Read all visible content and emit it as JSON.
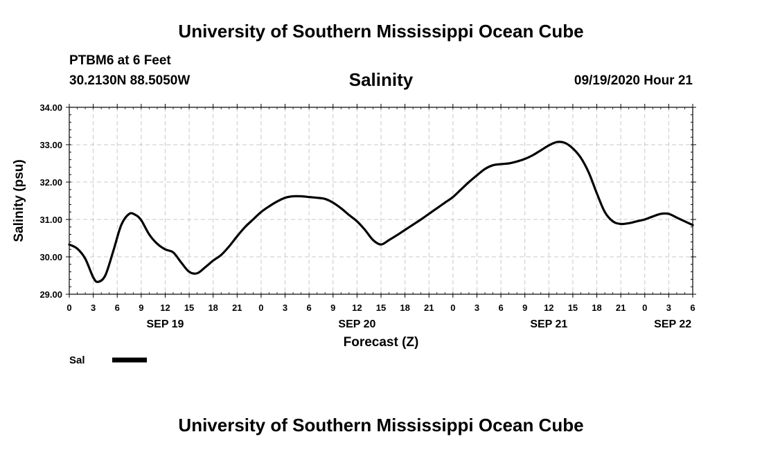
{
  "header": {
    "title": "University of Southern Mississippi Ocean Cube",
    "station": "PTBM6 at 6 Feet",
    "coords": "30.2130N 88.5050W",
    "subtitle": "Salinity",
    "datetime": "09/19/2020 Hour 21"
  },
  "footer": {
    "title": "University of Southern Mississippi Ocean Cube"
  },
  "colors": {
    "line": "#000000",
    "grid": "#c8c8c8",
    "axis": "#000000"
  },
  "chart_data": {
    "type": "line",
    "title": "Salinity",
    "ylabel": "Salinity (psu)",
    "xlabel": "Forecast (Z)",
    "ylim": [
      29.0,
      34.0
    ],
    "xlim": [
      0,
      78
    ],
    "grid": true,
    "y_ticks": [
      "29.00",
      "30.00",
      "31.00",
      "32.00",
      "33.00",
      "34.00"
    ],
    "x_tick_hours": [
      0,
      3,
      6,
      9,
      12,
      15,
      18,
      21,
      24,
      27,
      30,
      33,
      36,
      39,
      42,
      45,
      48,
      51,
      54,
      57,
      60,
      63,
      66,
      69,
      72,
      75,
      78
    ],
    "x_tick_labels": [
      "0",
      "3",
      "6",
      "9",
      "12",
      "15",
      "18",
      "21",
      "0",
      "3",
      "6",
      "9",
      "12",
      "15",
      "18",
      "21",
      "0",
      "3",
      "6",
      "9",
      "12",
      "15",
      "18",
      "21",
      "0",
      "3",
      "6"
    ],
    "date_labels": [
      {
        "label": "SEP 19",
        "hour": 12
      },
      {
        "label": "SEP 20",
        "hour": 36
      },
      {
        "label": "SEP 21",
        "hour": 60
      },
      {
        "label": "SEP 22",
        "hour": 75.5
      }
    ],
    "legend": {
      "label": "Sal",
      "placement": "bottom-left"
    },
    "series": [
      {
        "name": "Sal",
        "x": [
          0,
          1,
          2,
          3,
          3.6,
          4.5,
          5.5,
          6.5,
          7.5,
          8.3,
          9,
          10,
          11,
          12,
          13,
          14,
          15,
          16,
          17,
          18,
          19,
          20,
          21,
          22,
          23,
          24,
          25,
          26,
          27,
          28,
          29,
          30,
          31,
          32,
          33,
          34,
          35,
          36,
          37,
          38,
          39,
          40,
          41,
          42,
          43,
          44,
          45,
          46,
          47,
          48,
          49,
          50,
          51,
          52,
          53,
          54,
          55,
          56,
          57,
          58,
          59,
          60,
          61,
          62,
          63,
          64,
          65,
          66,
          67,
          68,
          69,
          70,
          71,
          72,
          73,
          74,
          75,
          76,
          77,
          78
        ],
        "values": [
          30.33,
          30.22,
          29.95,
          29.45,
          29.33,
          29.5,
          30.15,
          30.85,
          31.15,
          31.12,
          30.98,
          30.6,
          30.35,
          30.2,
          30.12,
          29.85,
          29.6,
          29.56,
          29.72,
          29.9,
          30.05,
          30.28,
          30.55,
          30.8,
          31.0,
          31.2,
          31.35,
          31.48,
          31.58,
          31.62,
          31.62,
          31.6,
          31.58,
          31.55,
          31.45,
          31.3,
          31.12,
          30.95,
          30.72,
          30.45,
          30.33,
          30.45,
          30.58,
          30.72,
          30.86,
          31.0,
          31.15,
          31.3,
          31.45,
          31.6,
          31.8,
          32.0,
          32.18,
          32.35,
          32.45,
          32.48,
          32.5,
          32.55,
          32.62,
          32.72,
          32.85,
          32.98,
          33.07,
          33.05,
          32.9,
          32.65,
          32.25,
          31.7,
          31.2,
          30.95,
          30.88,
          30.9,
          30.95,
          31.0,
          31.08,
          31.15,
          31.15,
          31.05,
          30.95,
          30.85
        ]
      }
    ]
  }
}
